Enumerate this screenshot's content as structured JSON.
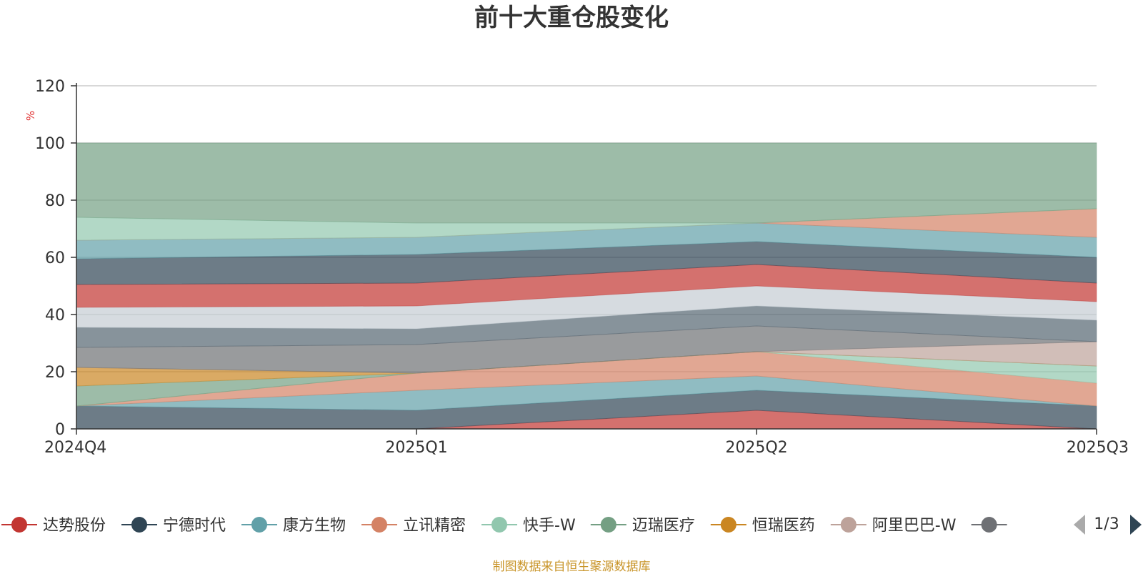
{
  "source_note": "制图数据来自恒生聚源数据库",
  "legend_page": "1/3",
  "chart_data": {
    "type": "area",
    "stacked": true,
    "title": "前十大重仓股变化",
    "xlabel": "",
    "ylabel": "%",
    "x": [
      "2024Q4",
      "2025Q1",
      "2025Q2",
      "2025Q3"
    ],
    "ylim": [
      0,
      120
    ],
    "yticks": [
      0,
      20,
      40,
      60,
      80,
      100,
      120
    ],
    "grid": true,
    "legend_position": "bottom",
    "series": [
      {
        "name": "达势股份",
        "color": "#c23531",
        "values": [
          0,
          0,
          6.5,
          0
        ]
      },
      {
        "name": "宁德时代",
        "color": "#2f4554",
        "values": [
          8,
          6.5,
          7,
          8
        ]
      },
      {
        "name": "康方生物",
        "color": "#61a0a8",
        "values": [
          0,
          7,
          5,
          0
        ]
      },
      {
        "name": "立讯精密",
        "color": "#d48265",
        "values": [
          0,
          6,
          8.5,
          8
        ]
      },
      {
        "name": "快手-W",
        "color": "#91c7ae",
        "values": [
          0,
          0,
          0,
          6
        ]
      },
      {
        "name": "迈瑞医疗",
        "color": "#749f83",
        "values": [
          7,
          0,
          0,
          0
        ]
      },
      {
        "name": "恒瑞医药",
        "color": "#ca8622",
        "values": [
          6.5,
          0,
          0,
          0
        ]
      },
      {
        "name": "阿里巴巴-W",
        "color": "#bda29a",
        "values": [
          0,
          0,
          0,
          8.5
        ]
      },
      {
        "name": "",
        "color": "#6e7074",
        "values": [
          7,
          10,
          9,
          0
        ]
      },
      {
        "name": "",
        "color": "#546570",
        "values": [
          7,
          5.5,
          7,
          7.5
        ]
      },
      {
        "name": "",
        "color": "#c4ccd3",
        "values": [
          7,
          8,
          7,
          6.5
        ]
      },
      {
        "name": "",
        "color": "#c23531",
        "values": [
          8,
          8,
          7.5,
          6.5
        ]
      },
      {
        "name": "",
        "color": "#2f4554",
        "values": [
          9,
          10,
          8,
          9
        ]
      },
      {
        "name": "",
        "color": "#61a0a8",
        "values": [
          6.5,
          6,
          6.5,
          7
        ]
      },
      {
        "name": "",
        "color": "#d48265",
        "values": [
          0,
          0,
          0,
          10
        ]
      },
      {
        "name": "",
        "color": "#91c7ae",
        "values": [
          8,
          5,
          0,
          0
        ]
      },
      {
        "name": "",
        "color": "#749f83",
        "values": [
          26,
          28,
          28,
          23
        ]
      }
    ]
  }
}
